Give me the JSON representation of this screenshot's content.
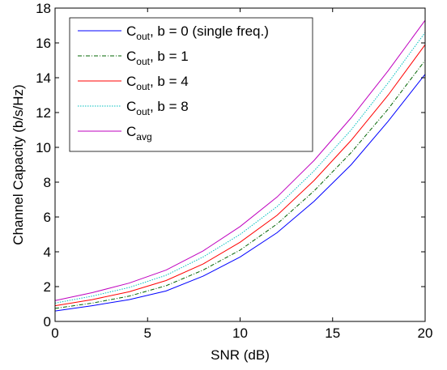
{
  "chart_data": {
    "type": "line",
    "xlabel": "SNR (dB)",
    "ylabel": "Channel Capacity (b/s/Hz)",
    "xlim": [
      0,
      20
    ],
    "ylim": [
      0,
      18
    ],
    "xticks": [
      0,
      5,
      10,
      15,
      20
    ],
    "yticks": [
      0,
      2,
      4,
      6,
      8,
      10,
      12,
      14,
      16,
      18
    ],
    "grid": false,
    "legend_position": "top-left",
    "x": [
      0,
      2,
      4,
      6,
      8,
      10,
      12,
      14,
      16,
      18,
      20
    ],
    "series": [
      {
        "name_main": "C",
        "name_sub": "out",
        "name_rest": ", b = 0 (single freq.)",
        "color": "#0000ff",
        "dash": "solid",
        "values": [
          0.6,
          0.9,
          1.25,
          1.75,
          2.6,
          3.7,
          5.1,
          6.9,
          9.0,
          11.5,
          14.2
        ]
      },
      {
        "name_main": "C",
        "name_sub": "out",
        "name_rest": ", b = 1",
        "color": "#006400",
        "dash": "dashdot",
        "values": [
          0.75,
          1.05,
          1.45,
          2.05,
          2.95,
          4.1,
          5.6,
          7.5,
          9.7,
          12.2,
          15.0
        ]
      },
      {
        "name_main": "C",
        "name_sub": "out",
        "name_rest": ", b = 4",
        "color": "#ff0000",
        "dash": "solid",
        "values": [
          0.9,
          1.25,
          1.7,
          2.35,
          3.3,
          4.55,
          6.1,
          8.1,
          10.4,
          13.0,
          15.9
        ]
      },
      {
        "name_main": "C",
        "name_sub": "out",
        "name_rest": ", b = 8",
        "color": "#00bfbf",
        "dash": "dotted",
        "values": [
          1.05,
          1.45,
          1.95,
          2.65,
          3.7,
          5.0,
          6.6,
          8.65,
          11.0,
          13.7,
          16.6
        ]
      },
      {
        "name_main": "C",
        "name_sub": "avg",
        "name_rest": "",
        "color": "#bf00bf",
        "dash": "solid",
        "values": [
          1.2,
          1.65,
          2.2,
          2.95,
          4.05,
          5.45,
          7.15,
          9.25,
          11.7,
          14.4,
          17.3
        ]
      }
    ]
  }
}
